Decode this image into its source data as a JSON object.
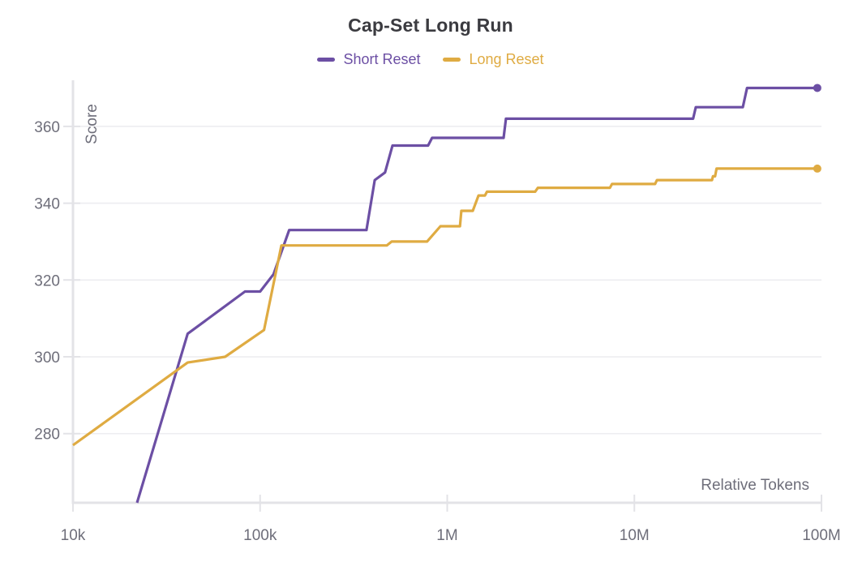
{
  "title": "Cap-Set Long Run",
  "chart_data": {
    "type": "line",
    "title": "Cap-Set Long Run",
    "xlabel": "Relative Tokens",
    "ylabel": "Score",
    "x_scale": "log",
    "xlim": [
      10000,
      100000000
    ],
    "ylim": [
      262,
      372
    ],
    "grid": "horizontal",
    "legend_position": "top-center",
    "x_ticks": [
      {
        "value": 10000,
        "label": "10k"
      },
      {
        "value": 100000,
        "label": "100k"
      },
      {
        "value": 1000000,
        "label": "1M"
      },
      {
        "value": 10000000,
        "label": "10M"
      },
      {
        "value": 100000000,
        "label": "100M"
      }
    ],
    "y_ticks": [
      {
        "value": 280,
        "label": "280"
      },
      {
        "value": 300,
        "label": "300"
      },
      {
        "value": 320,
        "label": "320"
      },
      {
        "value": 340,
        "label": "340"
      },
      {
        "value": 360,
        "label": "360"
      }
    ],
    "style": {
      "grid_color": "#ededf0",
      "axis_color": "#e3e3e7",
      "tick_text_color": "#6e6e7a",
      "title_color": "#3b3b40",
      "line_width": 3.2,
      "end_marker_radius": 5
    },
    "series": [
      {
        "name": "Short Reset",
        "color": "#6c4fa4",
        "end_marker": true,
        "points": [
          [
            22000,
            262
          ],
          [
            41000,
            306
          ],
          [
            83000,
            317
          ],
          [
            100000,
            317
          ],
          [
            118000,
            321.5
          ],
          [
            143000,
            333
          ],
          [
            370000,
            333
          ],
          [
            410000,
            346
          ],
          [
            465000,
            348
          ],
          [
            510000,
            355
          ],
          [
            790000,
            355
          ],
          [
            830000,
            357
          ],
          [
            2000000,
            357
          ],
          [
            2060000,
            362
          ],
          [
            20600000,
            362
          ],
          [
            21300000,
            365
          ],
          [
            38000000,
            365
          ],
          [
            40000000,
            370
          ],
          [
            95000000,
            370
          ]
        ]
      },
      {
        "name": "Long Reset",
        "color": "#dfab42",
        "end_marker": true,
        "points": [
          [
            10000,
            277
          ],
          [
            41000,
            298.5
          ],
          [
            65000,
            300
          ],
          [
            105000,
            307
          ],
          [
            130000,
            329
          ],
          [
            475000,
            329
          ],
          [
            505000,
            330
          ],
          [
            780000,
            330
          ],
          [
            920000,
            334
          ],
          [
            1170000,
            334
          ],
          [
            1190000,
            338
          ],
          [
            1370000,
            338
          ],
          [
            1470000,
            342
          ],
          [
            1590000,
            342
          ],
          [
            1630000,
            343
          ],
          [
            2950000,
            343
          ],
          [
            3050000,
            344
          ],
          [
            7400000,
            344
          ],
          [
            7600000,
            345
          ],
          [
            12900000,
            345
          ],
          [
            13200000,
            346
          ],
          [
            26000000,
            346
          ],
          [
            26300000,
            347
          ],
          [
            27000000,
            347
          ],
          [
            27500000,
            349
          ],
          [
            95000000,
            349
          ]
        ]
      }
    ]
  }
}
